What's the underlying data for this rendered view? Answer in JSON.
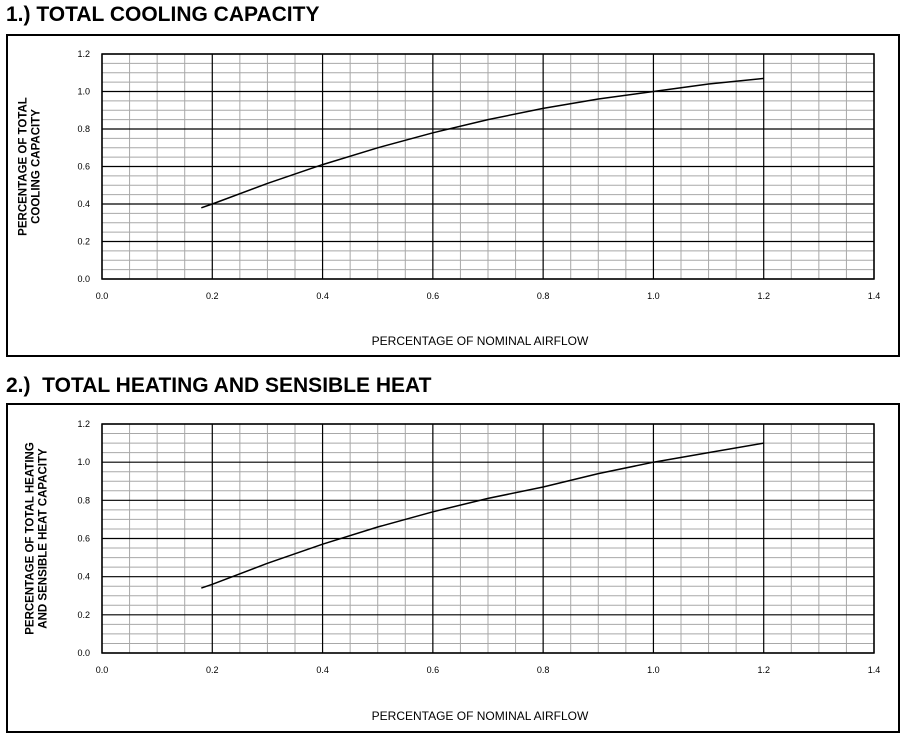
{
  "charts": [
    {
      "heading": "1.) TOTAL COOLING CAPACITY",
      "ylabel_lines": [
        "PERCENTAGE OF TOTAL",
        "COOLING CAPACITY"
      ],
      "xlabel": "PERCENTAGE OF NOMINAL AIRFLOW"
    },
    {
      "heading": "2.)  TOTAL HEATING AND SENSIBLE HEAT",
      "ylabel_lines": [
        "PERCENTAGE OF TOTAL HEATING",
        "AND SENSIBLE HEAT CAPACITY"
      ],
      "xlabel": "PERCENTAGE OF NOMINAL AIRFLOW"
    }
  ],
  "chart_data": [
    {
      "type": "line",
      "title": "1.) TOTAL COOLING CAPACITY",
      "xlabel": "PERCENTAGE OF NOMINAL AIRFLOW",
      "ylabel": "PERCENTAGE OF TOTAL COOLING CAPACITY",
      "xlim": [
        0,
        1.4
      ],
      "ylim": [
        0,
        1.2
      ],
      "xticks": [
        "0.0",
        "0.2",
        "0.4",
        "0.6",
        "0.8",
        "1.0",
        "1.2",
        "1.4"
      ],
      "yticks": [
        "0.0",
        "0.2",
        "0.4",
        "0.6",
        "0.8",
        "1.0",
        "1.2"
      ],
      "grid": true,
      "series": [
        {
          "x": [
            0.18,
            0.2,
            0.3,
            0.4,
            0.5,
            0.6,
            0.7,
            0.8,
            0.9,
            1.0,
            1.1,
            1.2
          ],
          "y": [
            0.38,
            0.4,
            0.51,
            0.61,
            0.7,
            0.78,
            0.85,
            0.91,
            0.96,
            1.0,
            1.04,
            1.07
          ]
        }
      ]
    },
    {
      "type": "line",
      "title": "2.)  TOTAL HEATING AND SENSIBLE HEAT",
      "xlabel": "PERCENTAGE OF NOMINAL AIRFLOW",
      "ylabel": "PERCENTAGE OF TOTAL HEATING AND SENSIBLE HEAT CAPACITY",
      "xlim": [
        0,
        1.4
      ],
      "ylim": [
        0,
        1.2
      ],
      "xticks": [
        "0.0",
        "0.2",
        "0.4",
        "0.6",
        "0.8",
        "1.0",
        "1.2",
        "1.4"
      ],
      "yticks": [
        "0.0",
        "0.2",
        "0.4",
        "0.6",
        "0.8",
        "1.0",
        "1.2"
      ],
      "grid": true,
      "series": [
        {
          "x": [
            0.18,
            0.2,
            0.3,
            0.4,
            0.5,
            0.6,
            0.7,
            0.8,
            0.9,
            1.0,
            1.1,
            1.2
          ],
          "y": [
            0.34,
            0.36,
            0.47,
            0.57,
            0.66,
            0.74,
            0.81,
            0.87,
            0.94,
            1.0,
            1.05,
            1.1
          ]
        }
      ]
    }
  ]
}
